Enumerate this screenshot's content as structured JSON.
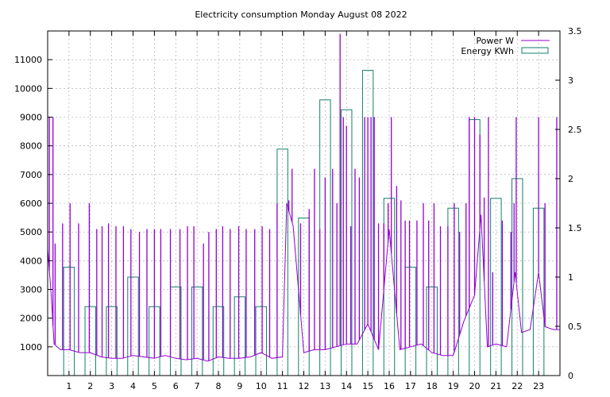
{
  "chart_data": {
    "type": "line",
    "title": "Electricity consumption Monday August 08 2022",
    "legend_position": "top-right",
    "grid": true,
    "x_axis": {
      "range": [
        0,
        24
      ],
      "tick_labels": [
        "1",
        "2",
        "3",
        "4",
        "5",
        "6",
        "7",
        "8",
        "9",
        "10",
        "11",
        "12",
        "13",
        "14",
        "15",
        "16",
        "17",
        "18",
        "19",
        "20",
        "21",
        "22",
        "23"
      ]
    },
    "y_axis_left": {
      "range": [
        0,
        12000
      ],
      "tick_values": [
        1000,
        2000,
        3000,
        4000,
        5000,
        6000,
        7000,
        8000,
        9000,
        10000,
        11000
      ]
    },
    "y_axis_right": {
      "range": [
        0,
        3.5
      ],
      "tick_values": [
        0,
        0.5,
        1,
        1.5,
        2,
        2.5,
        3,
        3.5
      ],
      "tick_labels": [
        "0",
        "0.5",
        "1",
        "1.5",
        "2",
        "2.5",
        "3",
        "3.5"
      ]
    },
    "series": [
      {
        "name": "Power W",
        "type": "line",
        "axis": "left",
        "color": "#9400d3",
        "baseline": [
          [
            0,
            4400
          ],
          [
            0.15,
            3000
          ],
          [
            0.3,
            1100
          ],
          [
            0.6,
            900
          ],
          [
            1.0,
            900
          ],
          [
            1.5,
            800
          ],
          [
            2.0,
            800
          ],
          [
            2.5,
            650
          ],
          [
            3.0,
            600
          ],
          [
            3.5,
            600
          ],
          [
            4.0,
            700
          ],
          [
            4.5,
            650
          ],
          [
            5.0,
            600
          ],
          [
            5.5,
            700
          ],
          [
            6.0,
            600
          ],
          [
            6.5,
            550
          ],
          [
            7.0,
            600
          ],
          [
            7.5,
            500
          ],
          [
            8.0,
            650
          ],
          [
            8.5,
            600
          ],
          [
            9.0,
            600
          ],
          [
            9.5,
            650
          ],
          [
            10.0,
            800
          ],
          [
            10.5,
            600
          ],
          [
            11.0,
            650
          ],
          [
            11.2,
            6000
          ],
          [
            11.5,
            5200
          ],
          [
            12.0,
            800
          ],
          [
            12.5,
            900
          ],
          [
            13.0,
            900
          ],
          [
            13.5,
            1000
          ],
          [
            14.0,
            1100
          ],
          [
            14.5,
            1100
          ],
          [
            15.0,
            1800
          ],
          [
            15.5,
            900
          ],
          [
            16.0,
            5100
          ],
          [
            16.5,
            900
          ],
          [
            17.0,
            1000
          ],
          [
            17.5,
            1100
          ],
          [
            18.0,
            800
          ],
          [
            18.5,
            700
          ],
          [
            19.0,
            700
          ],
          [
            19.5,
            1900
          ],
          [
            20.0,
            2800
          ],
          [
            20.3,
            5600
          ],
          [
            20.6,
            1000
          ],
          [
            21.0,
            1100
          ],
          [
            21.5,
            1000
          ],
          [
            21.9,
            3600
          ],
          [
            22.2,
            1500
          ],
          [
            22.6,
            1600
          ],
          [
            23.0,
            3600
          ],
          [
            23.3,
            1700
          ],
          [
            23.7,
            1600
          ],
          [
            24.0,
            1600
          ]
        ],
        "spikes": [
          [
            0.08,
            9000
          ],
          [
            0.25,
            9000
          ],
          [
            0.35,
            4600
          ],
          [
            0.7,
            5300
          ],
          [
            1.05,
            6000
          ],
          [
            1.45,
            5300
          ],
          [
            1.95,
            6000
          ],
          [
            2.3,
            5100
          ],
          [
            2.55,
            5200
          ],
          [
            2.85,
            5300
          ],
          [
            3.2,
            5200
          ],
          [
            3.55,
            5200
          ],
          [
            3.9,
            5100
          ],
          [
            4.3,
            5000
          ],
          [
            4.65,
            5100
          ],
          [
            5.0,
            5100
          ],
          [
            5.3,
            5100
          ],
          [
            5.75,
            5100
          ],
          [
            6.2,
            5100
          ],
          [
            6.55,
            5200
          ],
          [
            6.85,
            5200
          ],
          [
            7.3,
            4600
          ],
          [
            7.55,
            5000
          ],
          [
            7.9,
            5100
          ],
          [
            8.2,
            5200
          ],
          [
            8.55,
            5100
          ],
          [
            8.95,
            5200
          ],
          [
            9.3,
            5100
          ],
          [
            9.7,
            5100
          ],
          [
            10.05,
            5200
          ],
          [
            10.4,
            5100
          ],
          [
            10.75,
            6000
          ],
          [
            11.3,
            6100
          ],
          [
            11.45,
            7200
          ],
          [
            11.85,
            5300
          ],
          [
            12.25,
            5800
          ],
          [
            12.5,
            7200
          ],
          [
            12.75,
            5100
          ],
          [
            13.0,
            6900
          ],
          [
            13.35,
            7200
          ],
          [
            13.55,
            6000
          ],
          [
            13.7,
            11900
          ],
          [
            13.85,
            9000
          ],
          [
            14.0,
            8700
          ],
          [
            14.2,
            5200
          ],
          [
            14.4,
            7200
          ],
          [
            14.6,
            6900
          ],
          [
            14.85,
            9000
          ],
          [
            15.0,
            9000
          ],
          [
            15.15,
            9000
          ],
          [
            15.3,
            9000
          ],
          [
            15.5,
            5300
          ],
          [
            15.75,
            5300
          ],
          [
            15.95,
            6000
          ],
          [
            16.1,
            9000
          ],
          [
            16.35,
            6600
          ],
          [
            16.55,
            6100
          ],
          [
            16.75,
            5400
          ],
          [
            16.95,
            5400
          ],
          [
            17.3,
            5400
          ],
          [
            17.6,
            6000
          ],
          [
            17.85,
            5400
          ],
          [
            18.1,
            6000
          ],
          [
            18.4,
            5200
          ],
          [
            18.75,
            5200
          ],
          [
            19.05,
            6000
          ],
          [
            19.3,
            5000
          ],
          [
            19.6,
            6000
          ],
          [
            19.75,
            9000
          ],
          [
            20.0,
            9000
          ],
          [
            20.25,
            8400
          ],
          [
            20.45,
            6200
          ],
          [
            20.65,
            9000
          ],
          [
            20.85,
            3600
          ],
          [
            21.3,
            5400
          ],
          [
            21.7,
            5000
          ],
          [
            21.85,
            6000
          ],
          [
            21.95,
            9000
          ],
          [
            23.0,
            9000
          ],
          [
            23.3,
            6000
          ],
          [
            23.85,
            9000
          ]
        ]
      },
      {
        "name": "Energy KWh",
        "type": "bar",
        "axis": "right",
        "color": "#11806a",
        "x": [
          1,
          2,
          3,
          4,
          5,
          6,
          7,
          8,
          9,
          10,
          11,
          12,
          13,
          14,
          15,
          16,
          17,
          18,
          19,
          20,
          21,
          22,
          23
        ],
        "values": [
          1.1,
          0.7,
          0.7,
          1.0,
          0.7,
          0.9,
          0.9,
          0.7,
          0.8,
          0.7,
          2.3,
          1.6,
          2.8,
          2.7,
          3.1,
          1.8,
          1.1,
          0.9,
          1.7,
          2.6,
          1.8,
          2.0,
          1.7
        ]
      }
    ]
  }
}
